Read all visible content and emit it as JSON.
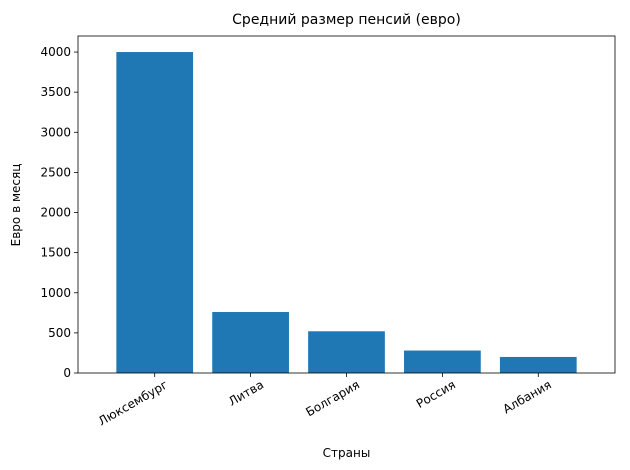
{
  "chart_data": {
    "type": "bar",
    "title": "Средний размер пенсий (евро)",
    "xlabel": "Страны",
    "ylabel": "Евро в месяц",
    "categories": [
      "Люксембург",
      "Литва",
      "Болгария",
      "Россия",
      "Албания"
    ],
    "values": [
      4000,
      760,
      520,
      280,
      200
    ],
    "ylim": [
      0,
      4200
    ],
    "yticks": [
      0,
      500,
      1000,
      1500,
      2000,
      2500,
      3000,
      3500,
      4000
    ],
    "x_tick_rotation_deg": 30,
    "bar_color": "#1f77b4",
    "grid": false,
    "legend": "none"
  }
}
